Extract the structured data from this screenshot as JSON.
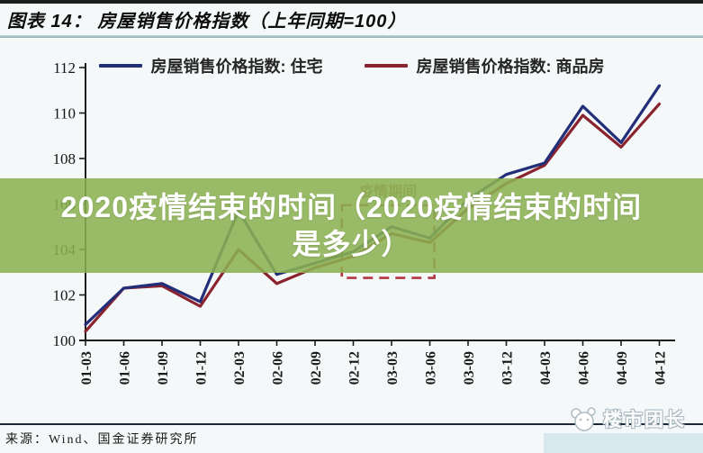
{
  "header": {
    "title": "图表 14：  房屋销售价格指数（上年同期=100）"
  },
  "legend": [
    {
      "label": "房屋销售价格指数: 住宅",
      "color": "#232e78"
    },
    {
      "label": "房屋销售价格指数: 商品房",
      "color": "#8a232e"
    }
  ],
  "overlay": {
    "line1": "2020疫情结束的时间（2020疫情结束的时间",
    "line2": "是多少）",
    "band_color": "#8bb252",
    "text_color": "#ffffff"
  },
  "chart_data": {
    "type": "line",
    "categories": [
      "01-03",
      "01-06",
      "01-09",
      "01-12",
      "02-03",
      "02-06",
      "02-09",
      "02-12",
      "03-03",
      "03-06",
      "03-09",
      "03-12",
      "04-03",
      "04-06",
      "04-09",
      "04-12"
    ],
    "series": [
      {
        "name": "房屋销售价格指数: 住宅",
        "color": "#232e78",
        "values": [
          100.7,
          102.3,
          102.5,
          101.7,
          105.7,
          102.9,
          103.4,
          103.9,
          105.0,
          104.5,
          106.2,
          107.3,
          107.8,
          110.3,
          108.7,
          111.2
        ]
      },
      {
        "name": "房屋销售价格指数: 商品房",
        "color": "#8a232e",
        "values": [
          100.4,
          102.3,
          102.4,
          101.5,
          104.0,
          102.5,
          103.2,
          103.7,
          104.7,
          104.3,
          105.8,
          106.9,
          107.7,
          109.9,
          108.5,
          110.4
        ]
      }
    ],
    "title": "房屋销售价格指数（上年同期=100）",
    "xlabel": "",
    "ylabel": "",
    "ylim": [
      100,
      112
    ],
    "yticks": [
      100,
      102,
      104,
      106,
      108,
      110,
      112
    ],
    "grid": false,
    "legend_position": "top",
    "annotation_box": {
      "label": "疫情期间",
      "color": "#b23540",
      "label_color": "#9c4a3c",
      "x_start_index": 6.7,
      "x_end_index": 9.12,
      "y_low": 102.75,
      "y_high": 105.95
    }
  },
  "footer": {
    "source": "来源：Wind、国金证券研究所",
    "watermark": "楼市团长"
  }
}
